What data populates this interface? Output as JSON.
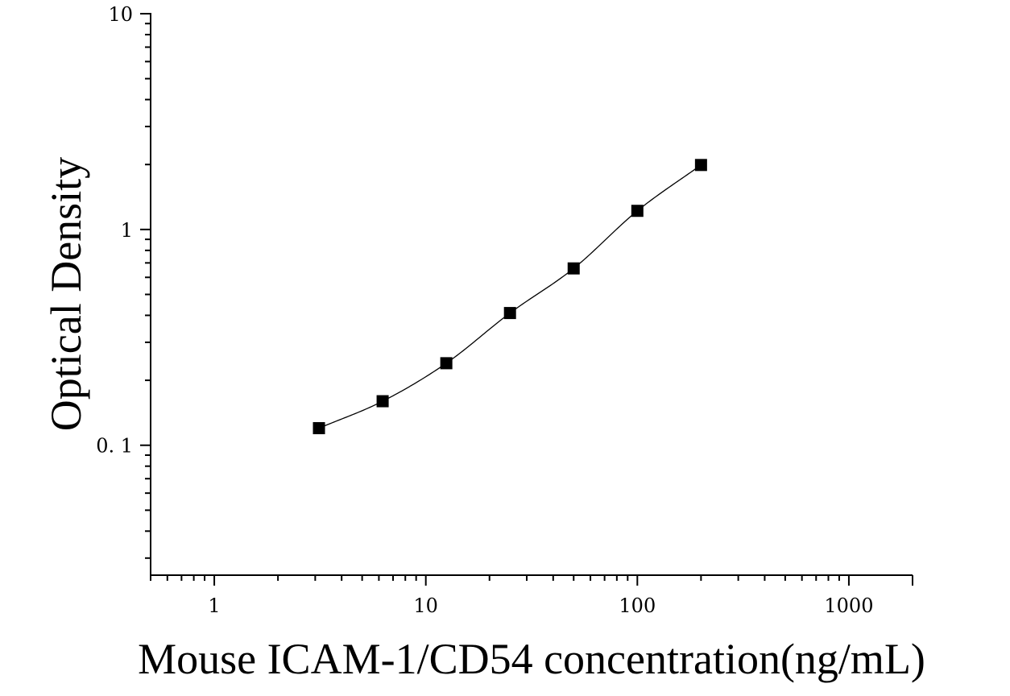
{
  "chart_data": {
    "type": "scatter",
    "title": "",
    "xlabel": "Mouse ICAM-1/CD54 concentration(ng/mL)",
    "ylabel": "Optical Density",
    "xscale": "log",
    "yscale": "log",
    "xlim": [
      0.5,
      2000
    ],
    "ylim": [
      0.025,
      10
    ],
    "xticks": [
      1,
      10,
      100,
      1000
    ],
    "xtick_labels": [
      "1",
      "10",
      "100",
      "1000"
    ],
    "yticks": [
      0.1,
      1,
      10
    ],
    "ytick_labels": [
      "0. 1",
      "1",
      "10"
    ],
    "grid": false,
    "legend": "none",
    "marker": "square",
    "color": "#000000",
    "series": [
      {
        "x": [
          3.125,
          6.25,
          12.5,
          25,
          50,
          100,
          200
        ],
        "y": [
          0.12,
          0.16,
          0.24,
          0.41,
          0.66,
          1.22,
          1.99
        ],
        "fit_curve": true
      }
    ]
  }
}
